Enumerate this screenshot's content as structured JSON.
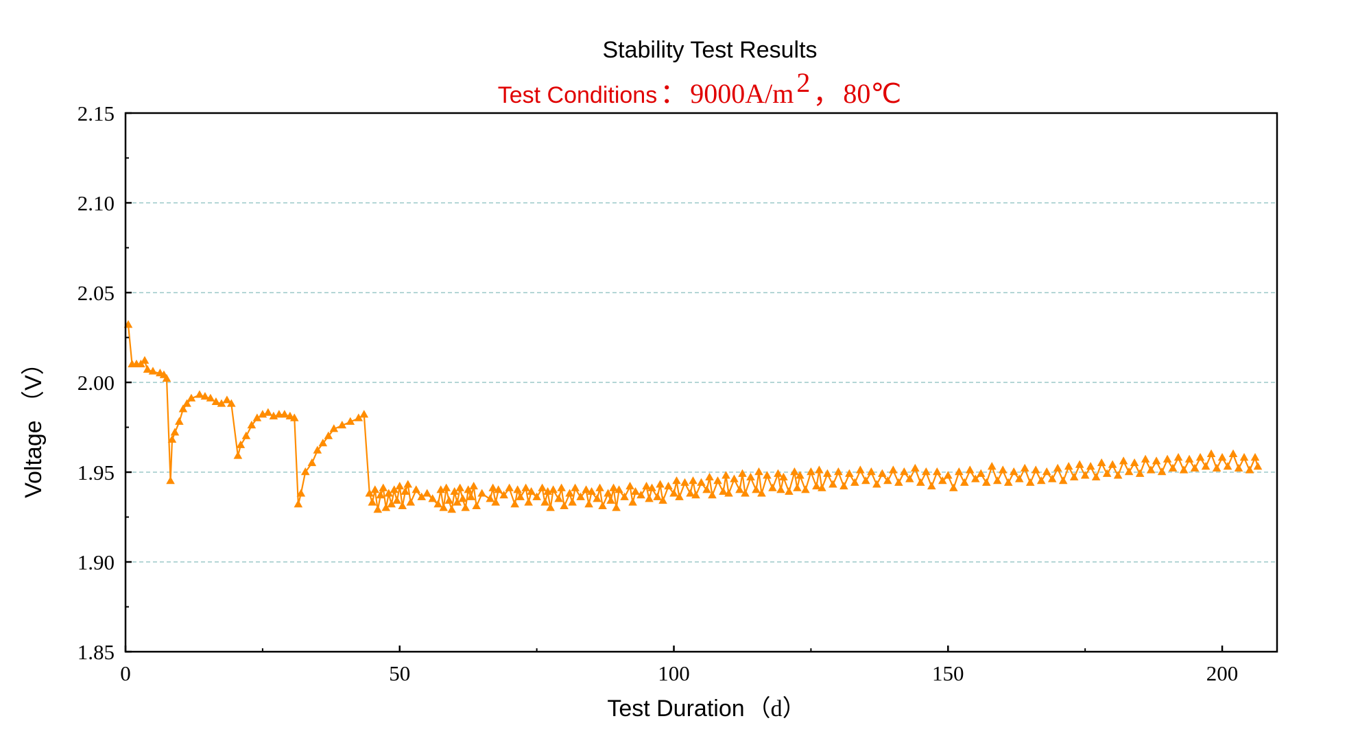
{
  "chart_data": {
    "type": "line",
    "title": "Stability Test Results",
    "subtitle": {
      "prefix": "Test Conditions",
      "separator": "：",
      "current_density": "9000A/m",
      "current_density_exp": "2",
      "comma": "，",
      "temperature": "80℃"
    },
    "xlabel": {
      "text": "Test Duration",
      "unit": "（d）"
    },
    "ylabel": "Voltage （V）",
    "xlim": [
      0,
      210
    ],
    "ylim": [
      1.85,
      2.15
    ],
    "xticks": [
      "0",
      "50",
      "100",
      "150",
      "200"
    ],
    "yticks": [
      "1.85",
      "1.90",
      "1.95",
      "2.00",
      "2.05",
      "2.10",
      "2.15"
    ],
    "grid": "horizontal-dashed",
    "marker": "triangle",
    "series": [
      {
        "name": "Voltage",
        "color": "#FF8C00",
        "points": [
          [
            0.5,
            2.032
          ],
          [
            1.2,
            2.01
          ],
          [
            2.0,
            2.01
          ],
          [
            2.8,
            2.01
          ],
          [
            3.5,
            2.012
          ],
          [
            4.0,
            2.007
          ],
          [
            5.0,
            2.006
          ],
          [
            6.3,
            2.005
          ],
          [
            7.0,
            2.004
          ],
          [
            7.5,
            2.002
          ],
          [
            8.2,
            1.945
          ],
          [
            8.5,
            1.968
          ],
          [
            9.0,
            1.972
          ],
          [
            9.8,
            1.978
          ],
          [
            10.5,
            1.985
          ],
          [
            11.2,
            1.988
          ],
          [
            12.0,
            1.991
          ],
          [
            13.5,
            1.993
          ],
          [
            14.5,
            1.992
          ],
          [
            15.5,
            1.991
          ],
          [
            16.5,
            1.989
          ],
          [
            17.5,
            1.988
          ],
          [
            18.5,
            1.99
          ],
          [
            19.3,
            1.988
          ],
          [
            20.5,
            1.959
          ],
          [
            21.0,
            1.965
          ],
          [
            22.0,
            1.97
          ],
          [
            23.0,
            1.976
          ],
          [
            24.0,
            1.98
          ],
          [
            25.0,
            1.982
          ],
          [
            26.0,
            1.983
          ],
          [
            27.0,
            1.981
          ],
          [
            28.0,
            1.982
          ],
          [
            29.0,
            1.982
          ],
          [
            30.0,
            1.981
          ],
          [
            30.8,
            1.98
          ],
          [
            31.5,
            1.932
          ],
          [
            32.0,
            1.938
          ],
          [
            32.8,
            1.95
          ],
          [
            34.0,
            1.955
          ],
          [
            35.0,
            1.962
          ],
          [
            36.0,
            1.966
          ],
          [
            37.0,
            1.97
          ],
          [
            38.0,
            1.974
          ],
          [
            39.5,
            1.976
          ],
          [
            41.0,
            1.978
          ],
          [
            42.5,
            1.98
          ],
          [
            43.5,
            1.982
          ],
          [
            44.5,
            1.938
          ],
          [
            45.0,
            1.933
          ],
          [
            45.5,
            1.94
          ],
          [
            46.0,
            1.929
          ],
          [
            46.5,
            1.937
          ],
          [
            47.0,
            1.941
          ],
          [
            47.5,
            1.93
          ],
          [
            48.0,
            1.938
          ],
          [
            48.5,
            1.932
          ],
          [
            49.0,
            1.94
          ],
          [
            49.5,
            1.934
          ],
          [
            50.0,
            1.942
          ],
          [
            50.5,
            1.931
          ],
          [
            51.0,
            1.939
          ],
          [
            51.5,
            1.943
          ],
          [
            52.0,
            1.933
          ],
          [
            53.0,
            1.94
          ],
          [
            54.0,
            1.936
          ],
          [
            55.0,
            1.938
          ],
          [
            56.0,
            1.935
          ],
          [
            57.0,
            1.932
          ],
          [
            57.5,
            1.94
          ],
          [
            58.0,
            1.93
          ],
          [
            58.5,
            1.941
          ],
          [
            59.0,
            1.934
          ],
          [
            59.5,
            1.929
          ],
          [
            60.0,
            1.939
          ],
          [
            60.5,
            1.933
          ],
          [
            61.0,
            1.941
          ],
          [
            61.5,
            1.935
          ],
          [
            62.0,
            1.93
          ],
          [
            62.5,
            1.94
          ],
          [
            63.0,
            1.936
          ],
          [
            63.5,
            1.942
          ],
          [
            64.0,
            1.931
          ],
          [
            65.0,
            1.938
          ],
          [
            66.5,
            1.935
          ],
          [
            67.0,
            1.941
          ],
          [
            67.5,
            1.933
          ],
          [
            68.0,
            1.94
          ],
          [
            69.0,
            1.937
          ],
          [
            70.0,
            1.941
          ],
          [
            71.0,
            1.932
          ],
          [
            71.5,
            1.94
          ],
          [
            72.0,
            1.936
          ],
          [
            73.0,
            1.941
          ],
          [
            73.5,
            1.933
          ],
          [
            74.0,
            1.939
          ],
          [
            75.0,
            1.936
          ],
          [
            76.0,
            1.941
          ],
          [
            76.5,
            1.933
          ],
          [
            77.0,
            1.939
          ],
          [
            77.5,
            1.93
          ],
          [
            78.0,
            1.94
          ],
          [
            79.0,
            1.935
          ],
          [
            79.5,
            1.941
          ],
          [
            80.0,
            1.931
          ],
          [
            81.0,
            1.938
          ],
          [
            81.5,
            1.933
          ],
          [
            82.0,
            1.941
          ],
          [
            83.0,
            1.936
          ],
          [
            84.0,
            1.94
          ],
          [
            84.5,
            1.932
          ],
          [
            85.0,
            1.939
          ],
          [
            86.0,
            1.935
          ],
          [
            86.5,
            1.941
          ],
          [
            87.0,
            1.931
          ],
          [
            88.0,
            1.938
          ],
          [
            88.5,
            1.934
          ],
          [
            89.0,
            1.941
          ],
          [
            89.5,
            1.93
          ],
          [
            90.0,
            1.94
          ],
          [
            91.0,
            1.936
          ],
          [
            92.0,
            1.942
          ],
          [
            92.5,
            1.933
          ],
          [
            93.0,
            1.939
          ],
          [
            94.0,
            1.937
          ],
          [
            95.0,
            1.942
          ],
          [
            95.5,
            1.935
          ],
          [
            96.0,
            1.941
          ],
          [
            97.0,
            1.936
          ],
          [
            97.5,
            1.943
          ],
          [
            98.0,
            1.934
          ],
          [
            99.0,
            1.942
          ],
          [
            100.0,
            1.938
          ],
          [
            100.5,
            1.945
          ],
          [
            101.0,
            1.936
          ],
          [
            102.0,
            1.944
          ],
          [
            103.0,
            1.938
          ],
          [
            103.5,
            1.945
          ],
          [
            104.0,
            1.937
          ],
          [
            105.0,
            1.944
          ],
          [
            106.0,
            1.94
          ],
          [
            106.5,
            1.947
          ],
          [
            107.0,
            1.937
          ],
          [
            108.0,
            1.945
          ],
          [
            109.0,
            1.939
          ],
          [
            109.5,
            1.948
          ],
          [
            110.0,
            1.938
          ],
          [
            111.0,
            1.946
          ],
          [
            112.0,
            1.94
          ],
          [
            112.5,
            1.949
          ],
          [
            113.0,
            1.938
          ],
          [
            114.0,
            1.947
          ],
          [
            115.0,
            1.94
          ],
          [
            115.5,
            1.95
          ],
          [
            116.0,
            1.938
          ],
          [
            117.0,
            1.948
          ],
          [
            118.0,
            1.941
          ],
          [
            119.0,
            1.949
          ],
          [
            119.5,
            1.94
          ],
          [
            120.0,
            1.947
          ],
          [
            121.0,
            1.939
          ],
          [
            122.0,
            1.95
          ],
          [
            122.5,
            1.941
          ],
          [
            123.0,
            1.948
          ],
          [
            124.0,
            1.94
          ],
          [
            125.0,
            1.95
          ],
          [
            126.0,
            1.942
          ],
          [
            126.5,
            1.951
          ],
          [
            127.0,
            1.941
          ],
          [
            128.0,
            1.949
          ],
          [
            129.0,
            1.943
          ],
          [
            130.0,
            1.95
          ],
          [
            131.0,
            1.942
          ],
          [
            132.0,
            1.949
          ],
          [
            133.0,
            1.944
          ],
          [
            134.0,
            1.951
          ],
          [
            135.0,
            1.945
          ],
          [
            136.0,
            1.95
          ],
          [
            137.0,
            1.943
          ],
          [
            138.0,
            1.949
          ],
          [
            139.0,
            1.945
          ],
          [
            140.0,
            1.951
          ],
          [
            141.0,
            1.944
          ],
          [
            142.0,
            1.95
          ],
          [
            143.0,
            1.946
          ],
          [
            144.0,
            1.952
          ],
          [
            145.0,
            1.944
          ],
          [
            146.0,
            1.95
          ],
          [
            147.0,
            1.942
          ],
          [
            148.0,
            1.95
          ],
          [
            149.0,
            1.945
          ],
          [
            150.0,
            1.948
          ],
          [
            151.0,
            1.941
          ],
          [
            152.0,
            1.95
          ],
          [
            153.0,
            1.944
          ],
          [
            154.0,
            1.951
          ],
          [
            155.0,
            1.946
          ],
          [
            156.0,
            1.949
          ],
          [
            157.0,
            1.944
          ],
          [
            158.0,
            1.953
          ],
          [
            159.0,
            1.945
          ],
          [
            160.0,
            1.951
          ],
          [
            161.0,
            1.944
          ],
          [
            162.0,
            1.95
          ],
          [
            163.0,
            1.946
          ],
          [
            164.0,
            1.952
          ],
          [
            165.0,
            1.944
          ],
          [
            166.0,
            1.951
          ],
          [
            167.0,
            1.945
          ],
          [
            168.0,
            1.95
          ],
          [
            169.0,
            1.946
          ],
          [
            170.0,
            1.952
          ],
          [
            171.0,
            1.945
          ],
          [
            172.0,
            1.953
          ],
          [
            173.0,
            1.947
          ],
          [
            174.0,
            1.954
          ],
          [
            175.0,
            1.948
          ],
          [
            176.0,
            1.953
          ],
          [
            177.0,
            1.947
          ],
          [
            178.0,
            1.955
          ],
          [
            179.0,
            1.949
          ],
          [
            180.0,
            1.954
          ],
          [
            181.0,
            1.948
          ],
          [
            182.0,
            1.956
          ],
          [
            183.0,
            1.95
          ],
          [
            184.0,
            1.955
          ],
          [
            185.0,
            1.949
          ],
          [
            186.0,
            1.957
          ],
          [
            187.0,
            1.951
          ],
          [
            188.0,
            1.956
          ],
          [
            189.0,
            1.95
          ],
          [
            190.0,
            1.957
          ],
          [
            191.0,
            1.952
          ],
          [
            192.0,
            1.958
          ],
          [
            193.0,
            1.951
          ],
          [
            194.0,
            1.957
          ],
          [
            195.0,
            1.952
          ],
          [
            196.0,
            1.958
          ],
          [
            197.0,
            1.953
          ],
          [
            198.0,
            1.96
          ],
          [
            199.0,
            1.952
          ],
          [
            200.0,
            1.958
          ],
          [
            201.0,
            1.953
          ],
          [
            202.0,
            1.96
          ],
          [
            203.0,
            1.952
          ],
          [
            204.0,
            1.958
          ],
          [
            205.0,
            1.951
          ],
          [
            206.0,
            1.958
          ],
          [
            206.5,
            1.953
          ]
        ]
      }
    ]
  },
  "colors": {
    "series": "#FF8C00",
    "subtitle": "#E00000",
    "grid": "#9CC9C9",
    "axis": "#000000"
  }
}
